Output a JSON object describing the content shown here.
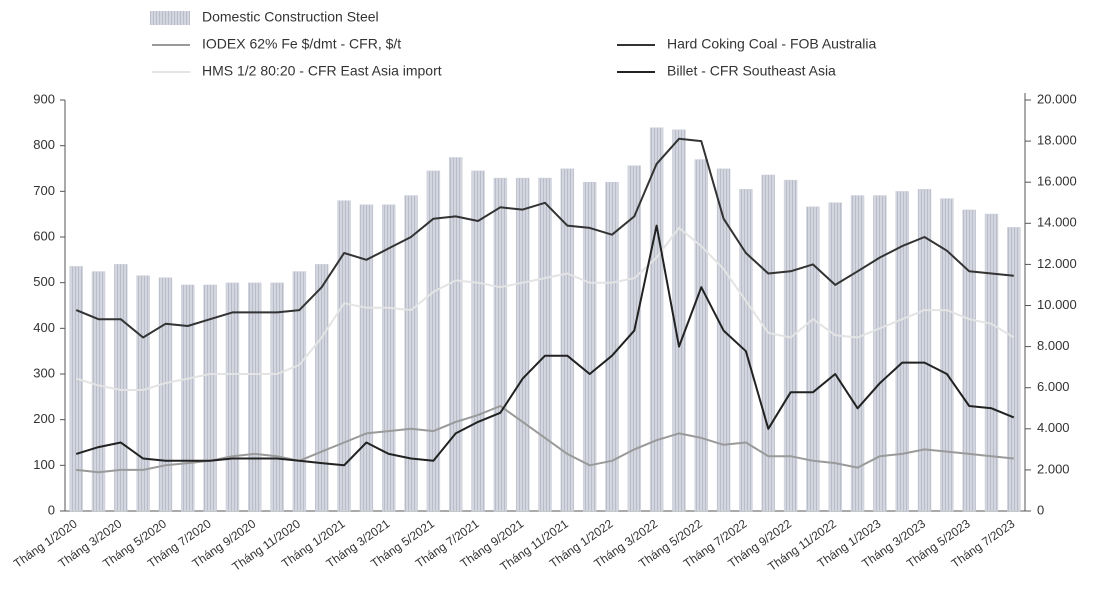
{
  "chart_data": {
    "type": "combo",
    "categories": [
      "Tháng 1/2020",
      null,
      "Tháng 3/2020",
      null,
      "Tháng 5/2020",
      null,
      "Tháng 7/2020",
      null,
      "Tháng 9/2020",
      null,
      "Tháng 11/2020",
      null,
      "Tháng 1/2021",
      null,
      "Tháng 3/2021",
      null,
      "Tháng 5/2021",
      null,
      "Tháng 7/2021",
      null,
      "Tháng 9/2021",
      null,
      "Tháng 11/2021",
      null,
      "Tháng 1/2022",
      null,
      "Tháng 3/2022",
      null,
      "Tháng 5/2022",
      null,
      "Tháng 7/2022",
      null,
      "Tháng 9/2022",
      null,
      "Tháng 11/2022",
      null,
      "Tháng 1/2023",
      null,
      "Tháng 3/2023",
      null,
      "Tháng 5/2023",
      null,
      "Tháng 7/2023"
    ],
    "series": [
      {
        "name": "Domestic Construction Steel",
        "type": "bar",
        "axis": "y2",
        "color": "#c9cdd8",
        "values": [
          11900,
          11650,
          12000,
          11450,
          11350,
          11000,
          11000,
          11100,
          11100,
          11100,
          11650,
          12000,
          15100,
          14900,
          14900,
          15350,
          16550,
          17200,
          16550,
          16200,
          16200,
          16200,
          16650,
          16000,
          16000,
          16800,
          18650,
          18550,
          17100,
          16650,
          15650,
          16350,
          16100,
          14800,
          15000,
          15350,
          15350,
          15550,
          15650,
          15200,
          14650,
          14450,
          13800
        ]
      },
      {
        "name": "IODEX 62% Fe $/dmt - CFR, $/t",
        "type": "line",
        "color": "#9a9a9a",
        "values": [
          90,
          85,
          90,
          90,
          100,
          105,
          110,
          120,
          125,
          120,
          110,
          130,
          150,
          170,
          175,
          180,
          175,
          195,
          210,
          230,
          195,
          160,
          125,
          100,
          110,
          135,
          155,
          170,
          160,
          145,
          150,
          120,
          120,
          110,
          105,
          95,
          120,
          125,
          135,
          130,
          125,
          120,
          115
        ]
      },
      {
        "name": "HMS 1/2 80:20 - CFR East Asia import",
        "type": "line",
        "color": "#e4e4e4",
        "values": [
          290,
          275,
          265,
          265,
          280,
          290,
          300,
          300,
          300,
          300,
          320,
          380,
          455,
          445,
          445,
          440,
          480,
          505,
          500,
          490,
          500,
          510,
          520,
          500,
          500,
          510,
          555,
          620,
          580,
          530,
          460,
          390,
          380,
          420,
          385,
          380,
          400,
          420,
          440,
          440,
          420,
          410,
          380
        ]
      },
      {
        "name": "Hard Coking Coal - FOB Australia",
        "type": "line",
        "color": "#333333",
        "values": [
          440,
          420,
          420,
          380,
          410,
          405,
          420,
          435,
          435,
          435,
          440,
          490,
          565,
          550,
          575,
          600,
          640,
          645,
          635,
          665,
          660,
          675,
          625,
          620,
          605,
          645,
          760,
          815,
          810,
          640,
          565,
          520,
          525,
          540,
          495,
          525,
          555,
          580,
          600,
          570,
          525,
          520,
          515
        ]
      },
      {
        "name": "Billet - CFR Southeast Asia",
        "type": "line",
        "color": "#222222",
        "values": [
          125,
          140,
          150,
          115,
          110,
          110,
          110,
          115,
          115,
          115,
          110,
          105,
          100,
          150,
          125,
          115,
          110,
          170,
          195,
          215,
          290,
          340,
          340,
          300,
          340,
          395,
          625,
          360,
          490,
          395,
          350,
          180,
          260,
          260,
          300,
          225,
          280,
          325,
          325,
          300,
          230,
          225,
          205
        ]
      }
    ],
    "ylim": [
      0,
      900
    ],
    "yticks": [
      0,
      100,
      200,
      300,
      400,
      500,
      600,
      700,
      800,
      900
    ],
    "y2lim": [
      0,
      20000
    ],
    "y2ticks": [
      0,
      {
        "value": 2000,
        "label": "2.000"
      },
      {
        "value": 4000,
        "label": "4.000"
      },
      {
        "value": 6000,
        "label": "6.000"
      },
      {
        "value": 8000,
        "label": "8.000"
      },
      {
        "value": 10000,
        "label": "10.000"
      },
      {
        "value": 12000,
        "label": "12.000"
      },
      {
        "value": 14000,
        "label": "14.000"
      },
      {
        "value": 16000,
        "label": "16.000"
      },
      {
        "value": 18000,
        "label": "18.000"
      },
      {
        "value": 20000,
        "label": "20.000"
      }
    ],
    "grid": false
  }
}
